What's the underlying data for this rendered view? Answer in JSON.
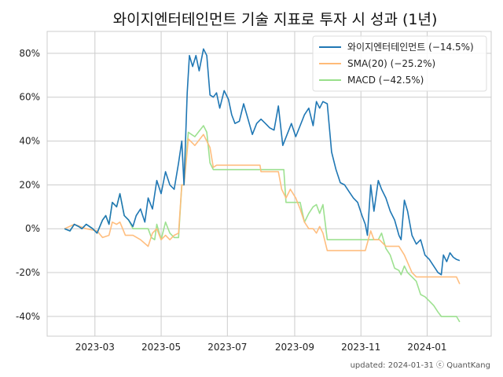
{
  "chart_data": {
    "type": "line",
    "title": "와이지엔터테인먼트 기술 지표로 투자 시 성과 (1년)",
    "xlabel": "",
    "ylabel": "",
    "x_ticks": [
      "2023-03",
      "2023-05",
      "2023-07",
      "2023-09",
      "2023-11",
      "2024-01"
    ],
    "y_ticks": [
      "-40%",
      "-20%",
      "0%",
      "20%",
      "40%",
      "60%",
      "80%"
    ],
    "y_tick_values": [
      -40,
      -20,
      0,
      20,
      40,
      60,
      80
    ],
    "ylim": [
      -49,
      90
    ],
    "xlim": [
      "2023-01-16",
      "2024-02-29"
    ],
    "grid": true,
    "legend_position": "top-right",
    "footer": "updated: 2024-01-31 ⓒ QuantKang",
    "series": [
      {
        "name": "와이지엔터테인먼트 (−14.5%)",
        "color": "#1f77b4",
        "points": [
          [
            "2023-02-01",
            0
          ],
          [
            "2023-02-06",
            -1
          ],
          [
            "2023-02-10",
            2
          ],
          [
            "2023-02-14",
            1
          ],
          [
            "2023-02-17",
            0
          ],
          [
            "2023-02-21",
            2
          ],
          [
            "2023-02-27",
            0
          ],
          [
            "2023-03-03",
            -2
          ],
          [
            "2023-03-08",
            4
          ],
          [
            "2023-03-11",
            6
          ],
          [
            "2023-03-14",
            2
          ],
          [
            "2023-03-17",
            12
          ],
          [
            "2023-03-21",
            10
          ],
          [
            "2023-03-24",
            16
          ],
          [
            "2023-03-28",
            6
          ],
          [
            "2023-04-01",
            4
          ],
          [
            "2023-04-05",
            1
          ],
          [
            "2023-04-08",
            6
          ],
          [
            "2023-04-12",
            9
          ],
          [
            "2023-04-16",
            3
          ],
          [
            "2023-04-19",
            14
          ],
          [
            "2023-04-23",
            9
          ],
          [
            "2023-04-27",
            22
          ],
          [
            "2023-05-01",
            16
          ],
          [
            "2023-05-05",
            26
          ],
          [
            "2023-05-09",
            20
          ],
          [
            "2023-05-13",
            18
          ],
          [
            "2023-05-17",
            30
          ],
          [
            "2023-05-20",
            40
          ],
          [
            "2023-05-22",
            20
          ],
          [
            "2023-05-25",
            62
          ],
          [
            "2023-05-27",
            79
          ],
          [
            "2023-05-30",
            74
          ],
          [
            "2023-06-02",
            79
          ],
          [
            "2023-06-05",
            72
          ],
          [
            "2023-06-09",
            82
          ],
          [
            "2023-06-12",
            79
          ],
          [
            "2023-06-15",
            61
          ],
          [
            "2023-06-18",
            60
          ],
          [
            "2023-06-21",
            62
          ],
          [
            "2023-06-24",
            55
          ],
          [
            "2023-06-28",
            63
          ],
          [
            "2023-07-02",
            59
          ],
          [
            "2023-07-05",
            52
          ],
          [
            "2023-07-08",
            48
          ],
          [
            "2023-07-12",
            49
          ],
          [
            "2023-07-16",
            57
          ],
          [
            "2023-07-20",
            50
          ],
          [
            "2023-07-24",
            43
          ],
          [
            "2023-07-28",
            48
          ],
          [
            "2023-08-01",
            50
          ],
          [
            "2023-08-05",
            48
          ],
          [
            "2023-08-09",
            46
          ],
          [
            "2023-08-13",
            45
          ],
          [
            "2023-08-17",
            56
          ],
          [
            "2023-08-21",
            38
          ],
          [
            "2023-08-25",
            43
          ],
          [
            "2023-08-29",
            48
          ],
          [
            "2023-09-02",
            42
          ],
          [
            "2023-09-06",
            47
          ],
          [
            "2023-09-10",
            52
          ],
          [
            "2023-09-14",
            55
          ],
          [
            "2023-09-18",
            47
          ],
          [
            "2023-09-21",
            58
          ],
          [
            "2023-09-24",
            55
          ],
          [
            "2023-09-27",
            58
          ],
          [
            "2023-10-01",
            57
          ],
          [
            "2023-10-05",
            35
          ],
          [
            "2023-10-09",
            27
          ],
          [
            "2023-10-13",
            21
          ],
          [
            "2023-10-17",
            20
          ],
          [
            "2023-10-21",
            17
          ],
          [
            "2023-10-25",
            14
          ],
          [
            "2023-10-29",
            12
          ],
          [
            "2023-11-02",
            6
          ],
          [
            "2023-11-05",
            2
          ],
          [
            "2023-11-07",
            -3
          ],
          [
            "2023-11-10",
            20
          ],
          [
            "2023-11-13",
            8
          ],
          [
            "2023-11-17",
            22
          ],
          [
            "2023-11-20",
            18
          ],
          [
            "2023-11-24",
            14
          ],
          [
            "2023-11-28",
            8
          ],
          [
            "2023-12-02",
            4
          ],
          [
            "2023-12-06",
            -3
          ],
          [
            "2023-12-08",
            -5
          ],
          [
            "2023-12-11",
            13
          ],
          [
            "2023-12-14",
            8
          ],
          [
            "2023-12-18",
            -3
          ],
          [
            "2023-12-22",
            -7
          ],
          [
            "2023-12-26",
            -5
          ],
          [
            "2023-12-30",
            -12
          ],
          [
            "2024-01-03",
            -14
          ],
          [
            "2024-01-07",
            -17
          ],
          [
            "2024-01-11",
            -20
          ],
          [
            "2024-01-14",
            -21
          ],
          [
            "2024-01-16",
            -12
          ],
          [
            "2024-01-19",
            -15
          ],
          [
            "2024-01-22",
            -11
          ],
          [
            "2024-01-25",
            -13
          ],
          [
            "2024-01-28",
            -14
          ],
          [
            "2024-01-31",
            -14.5
          ]
        ]
      },
      {
        "name": "SMA(20) (−25.2%)",
        "color": "#ffbb78",
        "points": [
          [
            "2023-02-01",
            0
          ],
          [
            "2023-02-10",
            2
          ],
          [
            "2023-02-21",
            0
          ],
          [
            "2023-03-03",
            -1
          ],
          [
            "2023-03-08",
            -4
          ],
          [
            "2023-03-14",
            -3
          ],
          [
            "2023-03-17",
            3
          ],
          [
            "2023-03-21",
            2
          ],
          [
            "2023-03-24",
            3
          ],
          [
            "2023-03-29",
            -3
          ],
          [
            "2023-04-05",
            -3
          ],
          [
            "2023-04-12",
            -5
          ],
          [
            "2023-04-19",
            -8
          ],
          [
            "2023-04-23",
            -2
          ],
          [
            "2023-04-27",
            0
          ],
          [
            "2023-05-01",
            -5
          ],
          [
            "2023-05-05",
            -3
          ],
          [
            "2023-05-09",
            -5
          ],
          [
            "2023-05-13",
            -3
          ],
          [
            "2023-05-17",
            -2
          ],
          [
            "2023-05-20",
            20
          ],
          [
            "2023-05-22",
            20
          ],
          [
            "2023-05-26",
            41
          ],
          [
            "2023-06-01",
            38
          ],
          [
            "2023-06-09",
            43
          ],
          [
            "2023-06-15",
            37
          ],
          [
            "2023-06-18",
            28
          ],
          [
            "2023-06-21",
            29
          ],
          [
            "2023-07-02",
            29
          ],
          [
            "2023-07-31",
            29
          ],
          [
            "2023-08-01",
            26
          ],
          [
            "2023-08-17",
            26
          ],
          [
            "2023-08-20",
            18
          ],
          [
            "2023-08-24",
            14
          ],
          [
            "2023-08-28",
            18
          ],
          [
            "2023-09-02",
            14
          ],
          [
            "2023-09-06",
            9
          ],
          [
            "2023-09-10",
            3
          ],
          [
            "2023-09-14",
            0
          ],
          [
            "2023-09-18",
            0
          ],
          [
            "2023-09-21",
            -2
          ],
          [
            "2023-09-24",
            1
          ],
          [
            "2023-09-27",
            -2
          ],
          [
            "2023-10-01",
            -10
          ],
          [
            "2023-10-09",
            -10
          ],
          [
            "2023-11-05",
            -10
          ],
          [
            "2023-11-10",
            -1
          ],
          [
            "2023-11-13",
            -5
          ],
          [
            "2023-11-18",
            -5
          ],
          [
            "2023-11-24",
            -8
          ],
          [
            "2023-12-06",
            -8
          ],
          [
            "2023-12-11",
            -12
          ],
          [
            "2023-12-18",
            -20
          ],
          [
            "2023-12-22",
            -22
          ],
          [
            "2024-01-28",
            -22
          ],
          [
            "2024-01-31",
            -25.2
          ]
        ]
      },
      {
        "name": "MACD (−42.5%)",
        "color": "#98df8a",
        "points": [
          [
            "2023-02-01",
            0
          ],
          [
            "2023-02-06",
            -1
          ],
          [
            "2023-02-10",
            2
          ],
          [
            "2023-02-14",
            1
          ],
          [
            "2023-02-17",
            0
          ],
          [
            "2023-02-21",
            2
          ],
          [
            "2023-02-27",
            0
          ],
          [
            "2023-03-03",
            -2
          ],
          [
            "2023-03-08",
            4
          ],
          [
            "2023-03-11",
            6
          ],
          [
            "2023-03-14",
            2
          ],
          [
            "2023-03-17",
            12
          ],
          [
            "2023-03-21",
            10
          ],
          [
            "2023-03-24",
            16
          ],
          [
            "2023-03-28",
            6
          ],
          [
            "2023-04-01",
            4
          ],
          [
            "2023-04-05",
            0
          ],
          [
            "2023-04-19",
            0
          ],
          [
            "2023-04-22",
            -4
          ],
          [
            "2023-04-25",
            -5
          ],
          [
            "2023-04-27",
            2
          ],
          [
            "2023-05-01",
            -5
          ],
          [
            "2023-05-05",
            3
          ],
          [
            "2023-05-09",
            -2
          ],
          [
            "2023-05-13",
            -4
          ],
          [
            "2023-05-17",
            -4
          ],
          [
            "2023-05-20",
            20
          ],
          [
            "2023-05-22",
            20
          ],
          [
            "2023-05-26",
            44
          ],
          [
            "2023-06-01",
            42
          ],
          [
            "2023-06-09",
            47
          ],
          [
            "2023-06-12",
            44
          ],
          [
            "2023-06-15",
            30
          ],
          [
            "2023-06-18",
            27
          ],
          [
            "2023-06-24",
            27
          ],
          [
            "2023-08-22",
            27
          ],
          [
            "2023-08-24",
            12
          ],
          [
            "2023-09-06",
            12
          ],
          [
            "2023-09-10",
            3
          ],
          [
            "2023-09-14",
            7
          ],
          [
            "2023-09-18",
            10
          ],
          [
            "2023-09-21",
            11
          ],
          [
            "2023-09-24",
            7
          ],
          [
            "2023-09-27",
            11
          ],
          [
            "2023-10-01",
            -5
          ],
          [
            "2023-11-17",
            -5
          ],
          [
            "2023-11-20",
            -2
          ],
          [
            "2023-11-24",
            -9
          ],
          [
            "2023-11-28",
            -12
          ],
          [
            "2023-12-02",
            -18
          ],
          [
            "2023-12-06",
            -19
          ],
          [
            "2023-12-08",
            -21
          ],
          [
            "2023-12-11",
            -17
          ],
          [
            "2023-12-14",
            -20
          ],
          [
            "2023-12-18",
            -22
          ],
          [
            "2023-12-22",
            -24
          ],
          [
            "2023-12-26",
            -30
          ],
          [
            "2023-12-30",
            -31
          ],
          [
            "2024-01-03",
            -33
          ],
          [
            "2024-01-07",
            -35
          ],
          [
            "2024-01-11",
            -38
          ],
          [
            "2024-01-14",
            -40
          ],
          [
            "2024-01-28",
            -40
          ],
          [
            "2024-01-31",
            -42.5
          ]
        ]
      }
    ]
  }
}
